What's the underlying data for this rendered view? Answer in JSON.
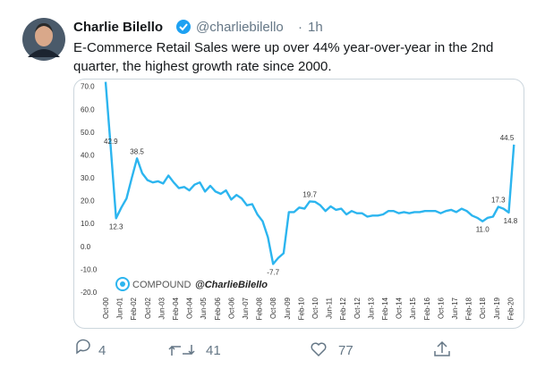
{
  "tweet": {
    "name": "Charlie Bilello",
    "handle": "@charliebilello",
    "separator": "·",
    "time": "1h",
    "text_lines": [
      "E-Commerce Retail Sales were up over 44% year-over-year in the 2nd",
      "quarter, the highest growth rate since 2000."
    ],
    "replies": 4,
    "retweets": 41,
    "likes": 77
  },
  "chart_data": {
    "type": "line",
    "source": "COMPOUND",
    "credit": "@CharlieBilello",
    "x": [
      "Oct-00",
      "Jan-01",
      "Apr-01",
      "Jul-01",
      "Oct-01",
      "Jan-02",
      "Apr-02",
      "Jul-02",
      "Oct-02",
      "Jan-03",
      "Apr-03",
      "Jul-03",
      "Oct-03",
      "Jan-04",
      "Apr-04",
      "Jul-04",
      "Oct-04",
      "Jan-05",
      "Apr-05",
      "Jul-05",
      "Oct-05",
      "Jan-06",
      "Apr-06",
      "Jul-06",
      "Oct-06",
      "Jan-07",
      "Apr-07",
      "Jul-07",
      "Oct-07",
      "Jan-08",
      "Apr-08",
      "Jul-08",
      "Oct-08",
      "Jan-09",
      "Apr-09",
      "Jul-09",
      "Oct-09",
      "Jan-10",
      "Apr-10",
      "Jul-10",
      "Oct-10",
      "Jan-11",
      "Apr-11",
      "Jul-11",
      "Oct-11",
      "Jan-12",
      "Apr-12",
      "Jul-12",
      "Oct-12",
      "Jan-13",
      "Apr-13",
      "Jul-13",
      "Oct-13",
      "Jan-14",
      "Apr-14",
      "Jul-14",
      "Oct-14",
      "Jan-15",
      "Apr-15",
      "Jul-15",
      "Oct-15",
      "Jan-16",
      "Apr-16",
      "Jul-16",
      "Oct-16",
      "Jan-17",
      "Apr-17",
      "Jul-17",
      "Oct-17",
      "Jan-18",
      "Apr-18",
      "Jul-18",
      "Oct-18",
      "Jan-19",
      "Apr-19",
      "Jul-19",
      "Oct-19",
      "Jan-20",
      "Apr-20"
    ],
    "series": [
      {
        "color": "#2cb5ef",
        "values": [
          72,
          42.9,
          12.3,
          17,
          21,
          30,
          38.5,
          32,
          29,
          28,
          28.5,
          27.5,
          31,
          28,
          25.5,
          26,
          24.5,
          27,
          28,
          24,
          26.5,
          24,
          23,
          24.5,
          20.5,
          22.5,
          21,
          18,
          18.5,
          14,
          11,
          4,
          -7.7,
          -5,
          -3,
          15,
          15,
          17,
          16.5,
          19.7,
          19.5,
          18,
          15.5,
          17.5,
          16,
          16.5,
          14,
          15.5,
          14.5,
          14.5,
          13,
          13.5,
          13.5,
          14,
          15.5,
          15.5,
          14.5,
          15,
          14.5,
          15,
          15,
          15.5,
          15.5,
          15.5,
          14.5,
          15.5,
          16,
          15,
          16.5,
          15.5,
          13.5,
          12.5,
          11.0,
          12.5,
          13,
          17.3,
          16.5,
          14.8,
          44.5
        ],
        "value_labels": [
          null,
          "42.9",
          "12.3",
          null,
          null,
          null,
          "38.5",
          null,
          null,
          null,
          null,
          null,
          null,
          null,
          null,
          null,
          null,
          null,
          null,
          null,
          null,
          null,
          null,
          null,
          null,
          null,
          null,
          null,
          null,
          null,
          null,
          null,
          "-7.7",
          null,
          null,
          null,
          null,
          null,
          null,
          "19.7",
          null,
          null,
          null,
          null,
          null,
          null,
          null,
          null,
          null,
          null,
          null,
          null,
          null,
          null,
          null,
          null,
          null,
          null,
          null,
          null,
          null,
          null,
          null,
          null,
          null,
          null,
          null,
          null,
          null,
          null,
          null,
          null,
          "11.0",
          null,
          null,
          "17.3",
          null,
          "14.8",
          "44.5"
        ]
      }
    ],
    "xticks": [
      "Oct-00",
      "Jun-01",
      "Feb-02",
      "Oct-02",
      "Jun-03",
      "Feb-04",
      "Oct-04",
      "Jun-05",
      "Feb-06",
      "Oct-06",
      "Jun-07",
      "Feb-08",
      "Oct-08",
      "Jun-09",
      "Feb-10",
      "Oct-10",
      "Jun-11",
      "Feb-12",
      "Oct-12",
      "Jun-13",
      "Feb-14",
      "Oct-14",
      "Jun-15",
      "Feb-16",
      "Oct-16",
      "Jun-17",
      "Feb-18",
      "Oct-18",
      "Jun-19",
      "Feb-20"
    ],
    "ylim": [
      -20,
      73
    ],
    "yticks": [
      {
        "value": 70,
        "label": "70.0"
      },
      {
        "value": 60,
        "label": "60.0"
      },
      {
        "value": 50,
        "label": "50.0"
      },
      {
        "value": 40,
        "label": "40.0"
      },
      {
        "value": 30,
        "label": "30.0"
      },
      {
        "value": 20,
        "label": "20.0"
      },
      {
        "value": 10,
        "label": "10.0"
      },
      {
        "value": 0,
        "label": "0.0"
      },
      {
        "value": -10,
        "label": "-10.0"
      },
      {
        "value": -20,
        "label": "-20.0"
      }
    ],
    "grid": false
  }
}
